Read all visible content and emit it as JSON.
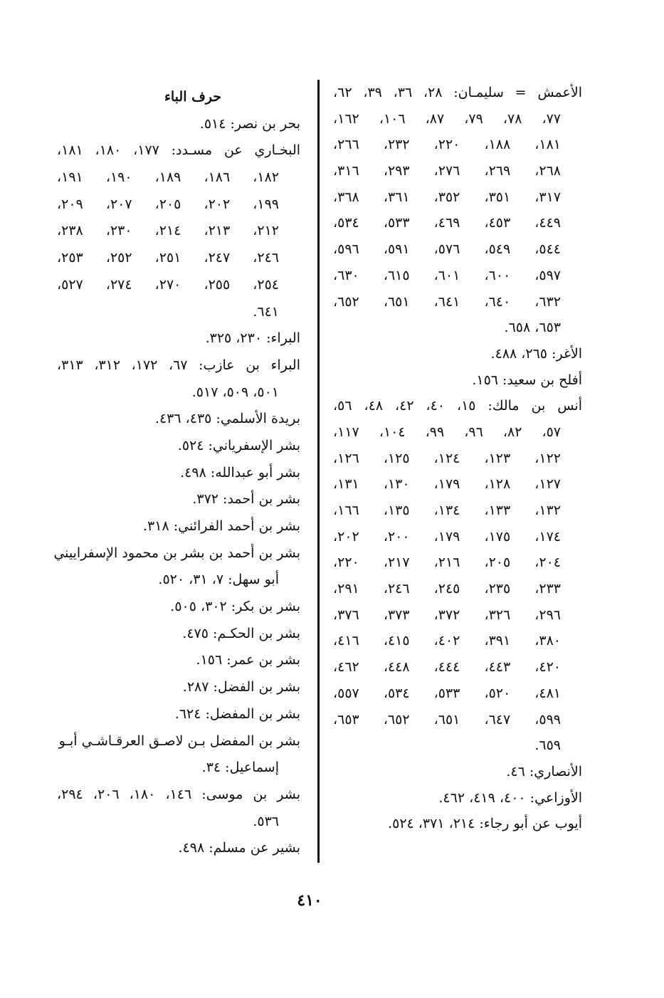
{
  "right_column": {
    "entries": [
      {
        "lines": [
          "الأعمش = سليمـان: ٢٨، ٣٦، ٣٩، ٦٢،",
          "٧٧، ٧٨، ٧٩، ٨٧، ١٠٦، ١٦٢،",
          "١٨١، ١٨٨، ٢٢٠، ٢٣٢، ٢٦٦،",
          "٢٦٨، ٢٦٩، ٢٧٦، ٢٩٣، ٣١٦،",
          "٣١٧، ٣٥١، ٣٥٢، ٣٦١، ٣٦٨،",
          "٤٤٩، ٤٥٣، ٤٦٩، ٥٣٣، ٥٣٤،",
          "٥٤٤، ٥٤٩، ٥٧٦، ٥٩١، ٥٩٦،",
          "٥٩٧، ٦٠٠، ٦٠١، ٦١٥، ٦٣٠،",
          "٦٣٢، ٦٤٠، ٦٤١، ٦٥١، ٦٥٢،",
          "٦٥٣، ٦٥٨."
        ]
      },
      {
        "lines": [
          "الأغر: ٢٦٥، ٤٨٨."
        ]
      },
      {
        "lines": [
          "أفلح بن سعيد: ١٥٦."
        ]
      },
      {
        "lines": [
          "أنس بن مالك: ١٥، ٤٠، ٤٢، ٤٨، ٥٦،",
          "٥٧، ٨٢، ٩٦، ٩٩، ١٠٤، ١١٧،",
          "١٢٢، ١٢٣، ١٢٤، ١٢٥، ١٢٦،",
          "١٢٧، ١٢٨، ١٧٩، ١٣٠، ١٣١،",
          "١٣٢، ١٣٣، ١٣٤، ١٣٥، ١٦٦،",
          "١٧٤، ١٧٥، ١٧٩، ٢٠٠، ٢٠٢،",
          "٢٠٤، ٢٠٥، ٢١٦، ٢١٧، ٢٢٠،",
          "٢٣٣، ٢٣٥، ٢٤٥، ٢٤٦، ٢٩١،",
          "٢٩٦، ٣٢٦، ٣٧٢، ٣٧٣، ٣٧٦،",
          "٣٨٠، ٣٩١، ٤٠٢، ٤١٥، ٤١٦،",
          "٤٢٠، ٤٤٣، ٤٤٤، ٤٤٨، ٤٦٢،",
          "٤٨١، ٥٢٠، ٥٣٣، ٥٣٤، ٥٥٧،",
          "٥٩٩، ٦٤٧، ٦٥١، ٦٥٢، ٦٥٣،",
          "٦٥٩."
        ]
      },
      {
        "lines": [
          "الأنصاري: ٤٦."
        ]
      },
      {
        "lines": [
          "الأوزاعي: ٤٠٠، ٤١٩، ٤٦٢."
        ]
      },
      {
        "lines": [
          "أيوب عن أبو رجاء: ٢١٤، ٣٧١، ٥٢٤."
        ]
      }
    ]
  },
  "left_column": {
    "heading": "حرف الباء",
    "entries": [
      {
        "lines": [
          "بحر بن نصر: ٥١٤."
        ]
      },
      {
        "lines": [
          "البخـاري عن مسـدد: ١٧٧، ١٨٠، ١٨١،",
          "١٨٢، ١٨٦، ١٨٩، ١٩٠، ١٩١،",
          "١٩٩، ٢٠٢، ٢٠٥، ٢٠٧، ٢٠٩،",
          "٢١٢، ٢١٣، ٢١٤، ٢٣٠، ٢٣٨،",
          "٢٤٦، ٢٤٧، ٢٥١، ٢٥٢، ٢٥٣،",
          "٢٥٤، ٢٥٥، ٢٧٠، ٢٧٤، ٥٢٧،",
          "٦٤١."
        ]
      },
      {
        "lines": [
          "البراء: ٢٣٠، ٣٢٥."
        ]
      },
      {
        "lines": [
          "البراء بن عازب: ٦٧، ١٧٢، ٣١٢، ٣١٣،",
          "٥٠١، ٥٠٩، ٥١٧."
        ]
      },
      {
        "lines": [
          "بريدة الأسلمي: ٤٣٥، ٤٣٦."
        ]
      },
      {
        "lines": [
          "بشر الإسفرياني: ٥٢٤."
        ]
      },
      {
        "lines": [
          "بشر أبو عبدالله: ٤٩٨."
        ]
      },
      {
        "lines": [
          "بشر بن أحمد: ٣٧٢."
        ]
      },
      {
        "lines": [
          "بشر بن أحمد الفرائني: ٣١٨."
        ]
      },
      {
        "lines": [
          "بشر بن أحمد بن بشر بن محمود الإسفراييني",
          "أبو سهل: ٧، ٣١، ٥٢٠."
        ]
      },
      {
        "lines": [
          "بشر بن بكر: ٣٠٢، ٥٠٥."
        ]
      },
      {
        "lines": [
          "بشر بن الحكـم: ٤٧٥."
        ]
      },
      {
        "lines": [
          "بشر بن عمر: ١٥٦."
        ]
      },
      {
        "lines": [
          "بشر بن الفضل: ٢٨٧."
        ]
      },
      {
        "lines": [
          "بشر بن المفضل: ٦٢٤."
        ]
      },
      {
        "lines": [
          "بشر بن المفضل بـن لاصـق العرقـاشـي أبـو",
          "إسماعيل: ٣٤."
        ]
      },
      {
        "lines": [
          "بشر بن موسى: ١٤٦، ١٨٠، ٢٠٦، ٢٩٤،",
          "٥٣٦."
        ]
      },
      {
        "lines": [
          "بشير عن مسلم: ٤٩٨."
        ]
      }
    ]
  },
  "page_number": "٤١٠"
}
